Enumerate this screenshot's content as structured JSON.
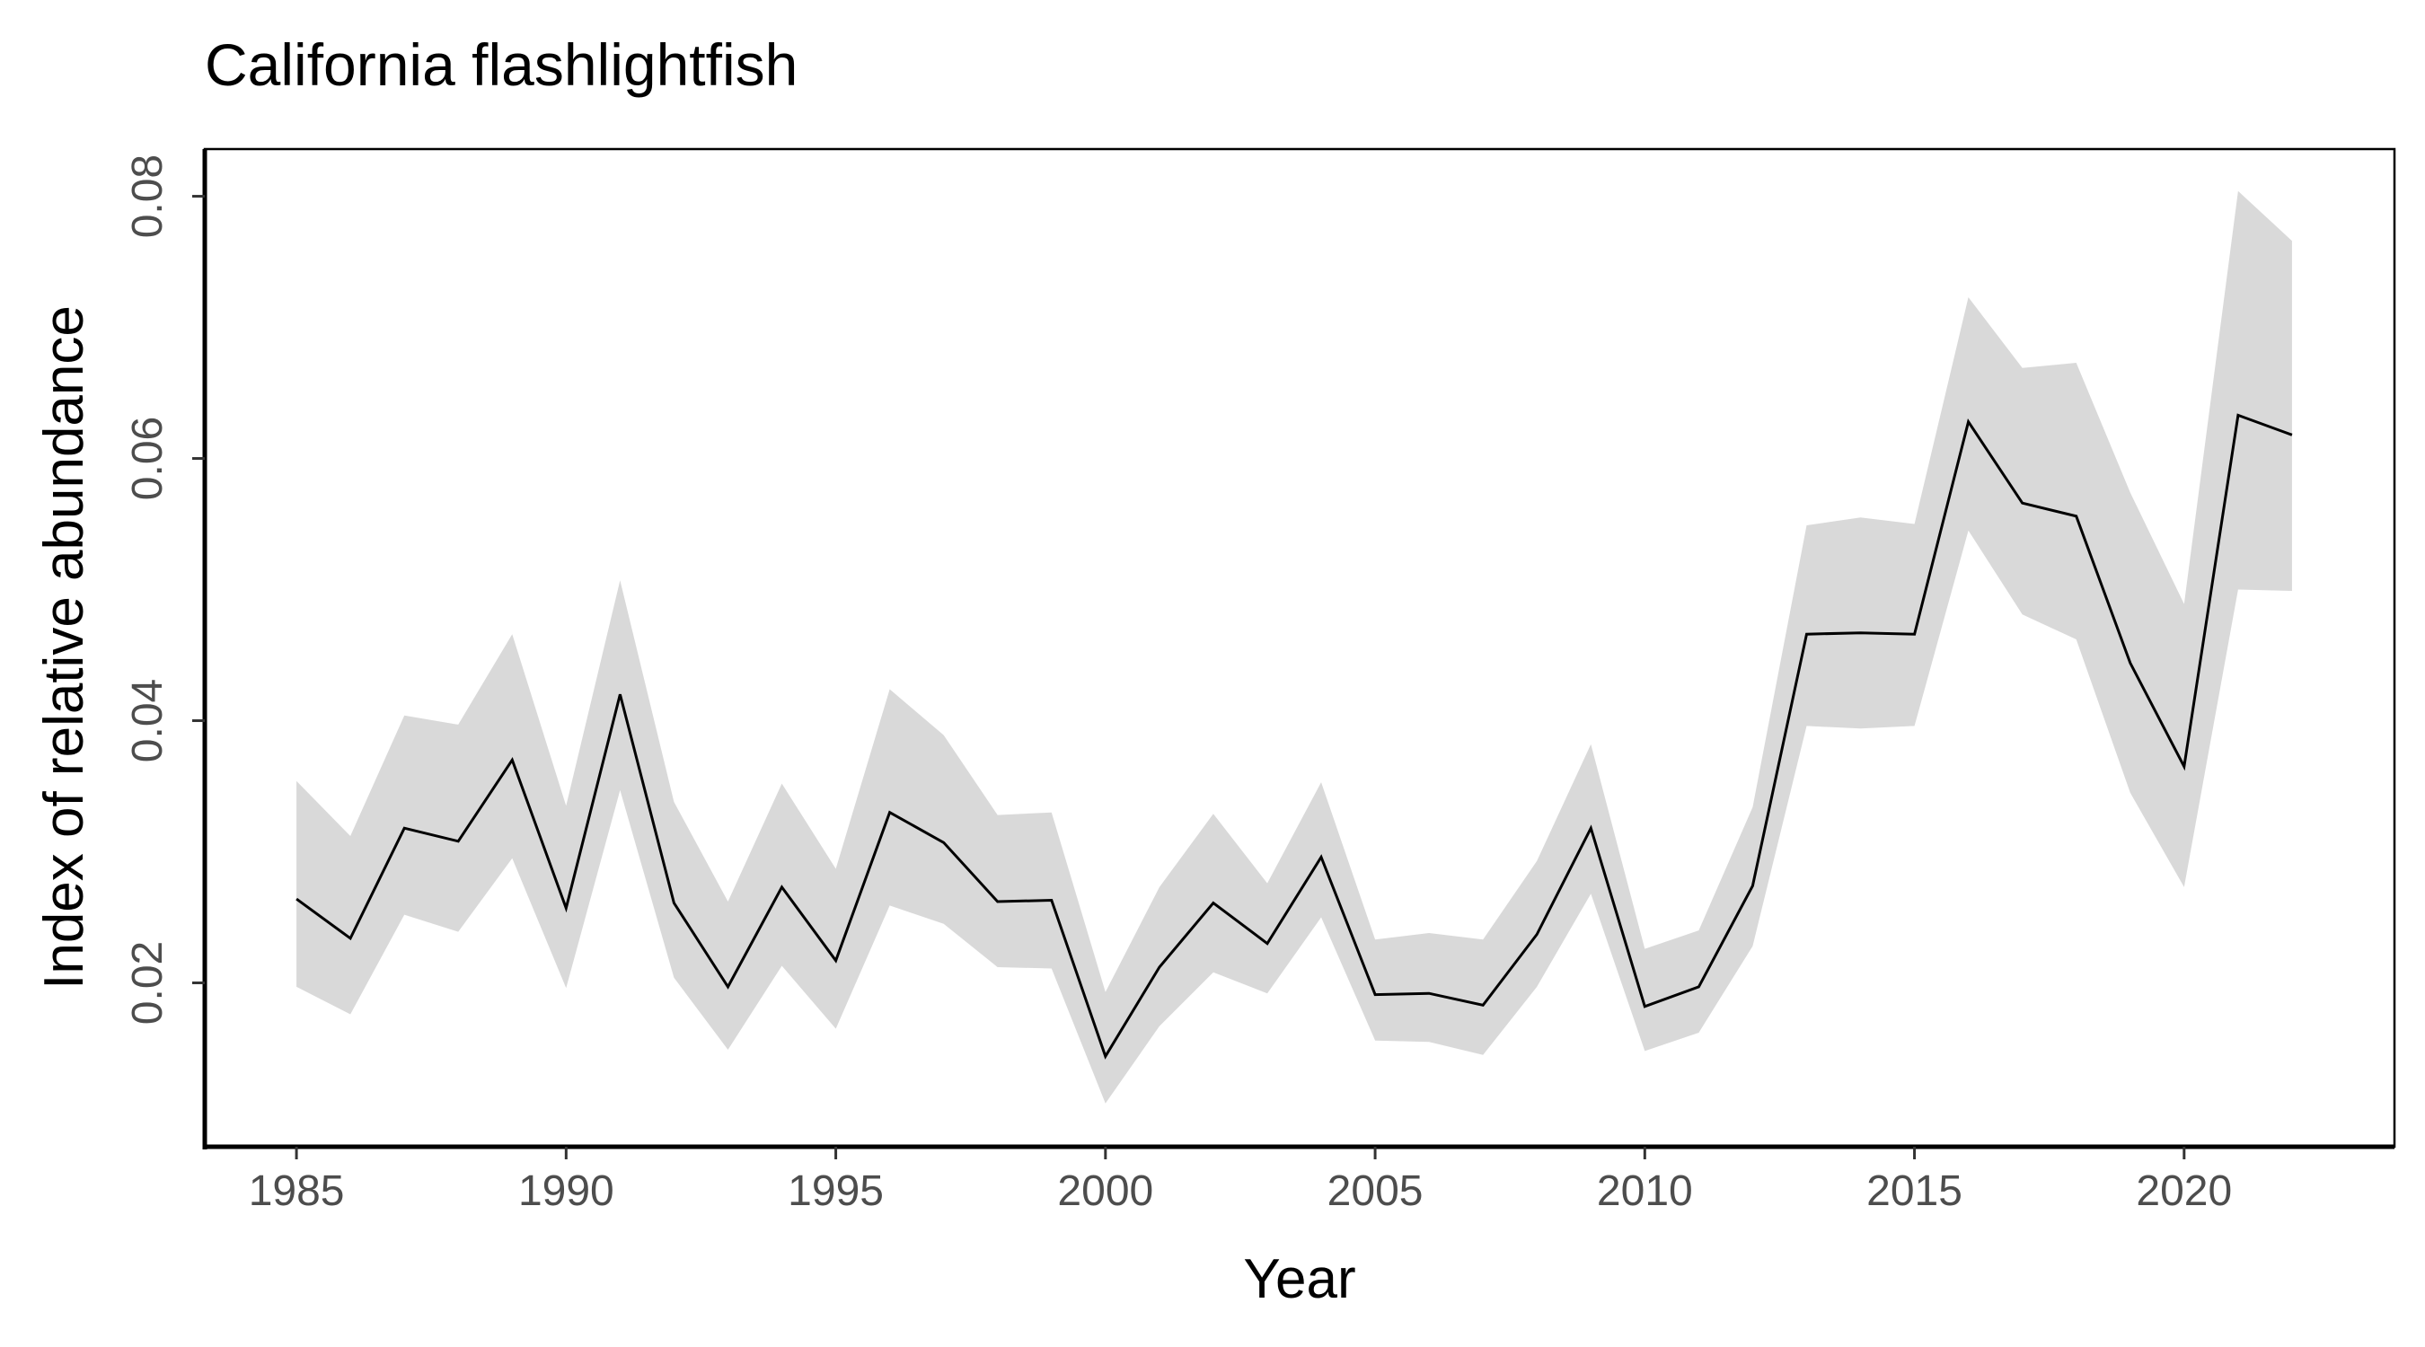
{
  "chart_data": {
    "type": "line",
    "title": "California flashlightfish",
    "xlabel": "Year",
    "ylabel": "Index of relative abundance",
    "xlim": [
      1983.3,
      2023.9
    ],
    "ylim": [
      0.0075,
      0.0836
    ],
    "x_ticks": [
      "1985",
      "1990",
      "1995",
      "2000",
      "2005",
      "2010",
      "2015",
      "2020"
    ],
    "y_ticks": [
      "0.02",
      "0.04",
      "0.06",
      "0.08"
    ],
    "grid": false,
    "legend": "none",
    "colors": {
      "line": "#000000",
      "ribbon": "#d9d9d9",
      "frame": "#000000"
    },
    "series": [
      {
        "x": [
          1985,
          1986,
          1987,
          1988,
          1989,
          1990,
          1991,
          1992,
          1993,
          1994,
          1995,
          1996,
          1997,
          1998,
          1999,
          2000,
          2001,
          2002,
          2003,
          2004,
          2005,
          2006,
          2007,
          2008,
          2009,
          2010,
          2011,
          2012,
          2013,
          2014,
          2015,
          2016,
          2017,
          2018,
          2019,
          2020,
          2021,
          2022
        ],
        "values": [
          0.0264,
          0.0234,
          0.0318,
          0.0308,
          0.037,
          0.0257,
          0.042,
          0.0261,
          0.0197,
          0.0273,
          0.0217,
          0.033,
          0.0307,
          0.0262,
          0.0263,
          0.0144,
          0.0212,
          0.0261,
          0.023,
          0.0296,
          0.0191,
          0.0192,
          0.0183,
          0.0237,
          0.0318,
          0.0182,
          0.0197,
          0.0274,
          0.0466,
          0.0467,
          0.0466,
          0.0628,
          0.0566,
          0.0556,
          0.0444,
          0.0365,
          0.0633,
          0.0618
        ],
        "lower": [
          0.0197,
          0.0176,
          0.0252,
          0.0239,
          0.0295,
          0.0196,
          0.0347,
          0.0204,
          0.0149,
          0.0213,
          0.0165,
          0.0259,
          0.0245,
          0.0212,
          0.0211,
          0.0108,
          0.0167,
          0.0208,
          0.0192,
          0.025,
          0.0156,
          0.0155,
          0.0145,
          0.0197,
          0.0268,
          0.0148,
          0.0162,
          0.0228,
          0.0396,
          0.0394,
          0.0396,
          0.0545,
          0.0481,
          0.0462,
          0.0345,
          0.0273,
          0.05,
          0.0499
        ],
        "upper": [
          0.0354,
          0.0312,
          0.0404,
          0.0397,
          0.0466,
          0.0335,
          0.0507,
          0.0338,
          0.0262,
          0.0352,
          0.0287,
          0.0424,
          0.0389,
          0.0328,
          0.033,
          0.0193,
          0.0273,
          0.0329,
          0.0276,
          0.0353,
          0.0233,
          0.0238,
          0.0233,
          0.0293,
          0.0382,
          0.0226,
          0.024,
          0.0334,
          0.0549,
          0.0555,
          0.055,
          0.0723,
          0.0669,
          0.0673,
          0.0574,
          0.0489,
          0.0804,
          0.0766
        ]
      }
    ]
  }
}
